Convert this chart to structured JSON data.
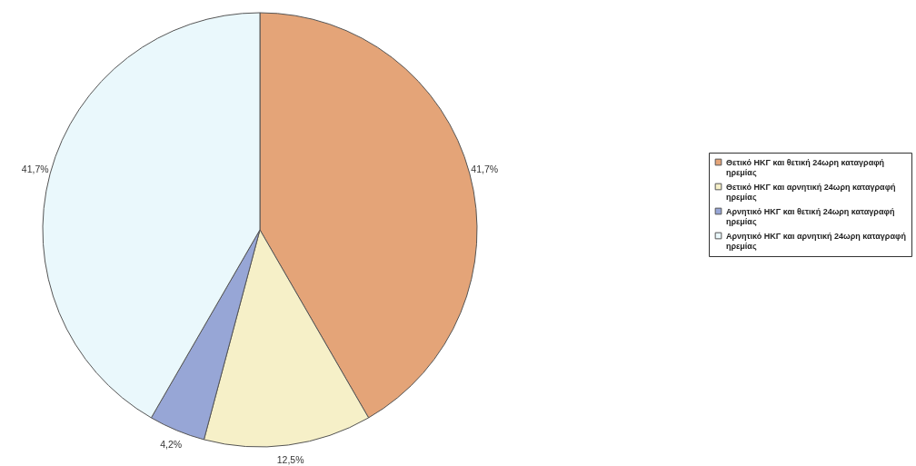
{
  "chart_data": {
    "type": "pie",
    "categories": [
      "Θετικό ΗΚΓ και θετική 24ωρη καταγραφή ηρεμίας",
      "Θετικό ΗΚΓ και αρνητική 24ωρη καταγραφή ηρεμίας",
      "Αρνητικό ΗΚΓ και θετική 24ωρη καταγραφή ηρεμίας",
      "Αρνητικό ΗΚΓ και αρνητική 24ωρη καταγραφή ηρεμίας"
    ],
    "values": [
      41.7,
      12.5,
      4.2,
      41.7
    ],
    "colors": [
      "#e4a478",
      "#f6f0c8",
      "#97a6d6",
      "#eaf8fc"
    ],
    "value_labels": [
      "41,7%",
      "12,5%",
      "4,2%",
      "41,7%"
    ],
    "legend": "right"
  }
}
